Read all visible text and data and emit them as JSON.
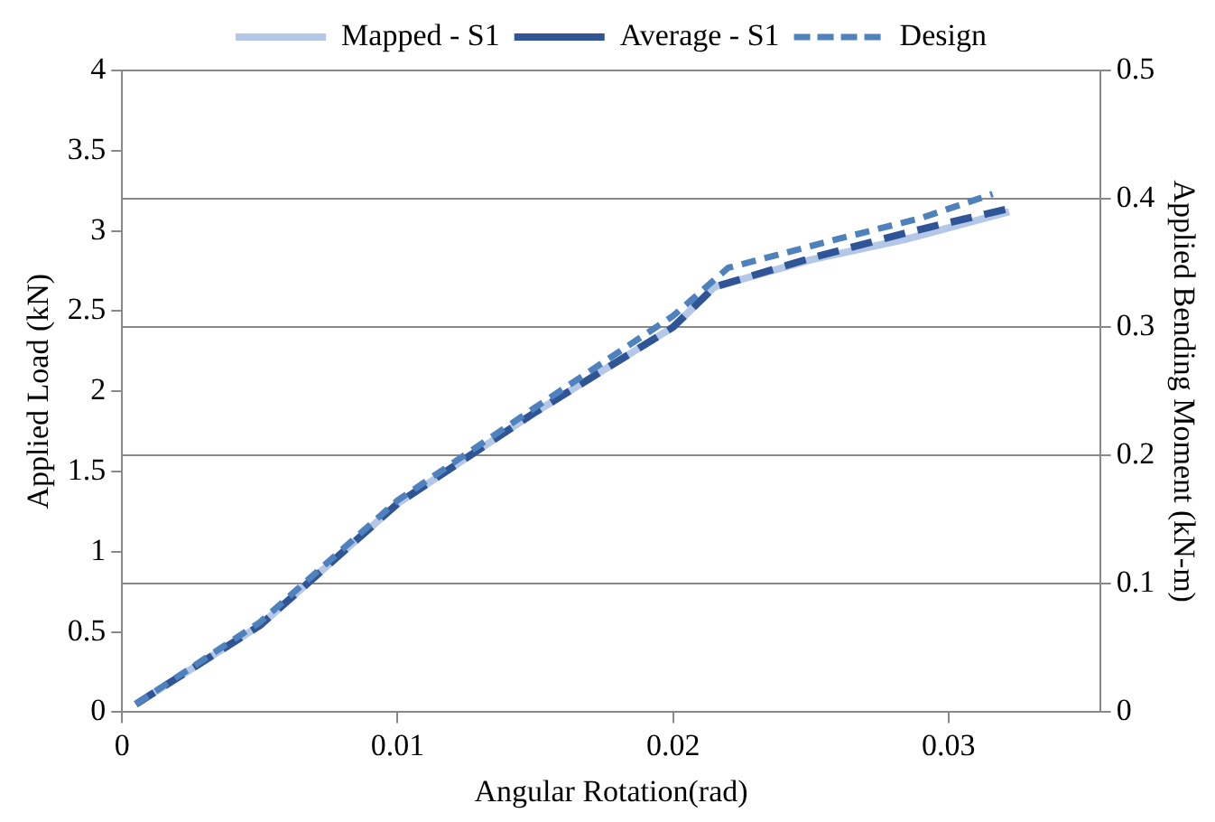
{
  "chart_data": {
    "type": "line",
    "xlabel": "Angular Rotation(rad)",
    "ylabel": "Applied Load (kN)",
    "y2label": "Applied Bending Moment (kN-m)",
    "xlim": [
      0,
      0.0355
    ],
    "xticks": [
      0,
      0.01,
      0.02,
      0.03
    ],
    "ylim": [
      0,
      4
    ],
    "yticks": [
      0,
      0.5,
      1,
      1.5,
      2,
      2.5,
      3,
      3.5,
      4
    ],
    "y2lim": [
      0,
      0.5
    ],
    "y2ticks": [
      0,
      0.1,
      0.2,
      0.3,
      0.4,
      0.5
    ],
    "grid": "y2",
    "legend": "top",
    "marker": "none",
    "series": [
      {
        "name": "Mapped - S1",
        "color": "#b4c7e7",
        "line_style": "solid",
        "x": [
          0.0005,
          0.005,
          0.01,
          0.015,
          0.02,
          0.0215,
          0.025,
          0.0285,
          0.0322
        ],
        "values": [
          0.05,
          0.54,
          1.3,
          1.87,
          2.4,
          2.65,
          2.82,
          2.95,
          3.12
        ]
      },
      {
        "name": "Average - S1",
        "color": "#2f5597",
        "line_style": "dashed",
        "x": [
          0.0005,
          0.005,
          0.01,
          0.015,
          0.02,
          0.0215,
          0.025,
          0.0285,
          0.0322
        ],
        "values": [
          0.05,
          0.54,
          1.3,
          1.87,
          2.4,
          2.65,
          2.83,
          2.99,
          3.14
        ]
      },
      {
        "name": "Design",
        "color": "#4f81bd",
        "line_style": "dashed",
        "x": [
          0.0005,
          0.005,
          0.01,
          0.015,
          0.02,
          0.022,
          0.026,
          0.029,
          0.0316
        ],
        "values": [
          0.05,
          0.56,
          1.32,
          1.9,
          2.47,
          2.77,
          2.95,
          3.08,
          3.23
        ]
      }
    ]
  }
}
